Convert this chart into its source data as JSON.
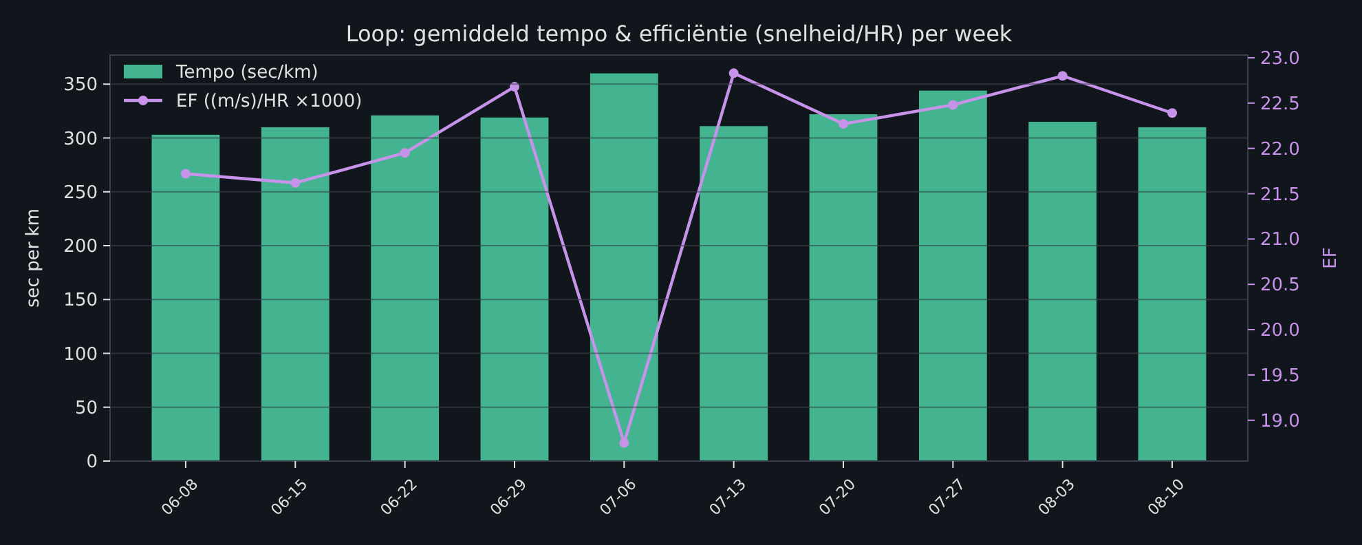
{
  "chart_data": {
    "type": "bar",
    "title": "Loop: gemiddeld tempo & efficiëntie (snelheid/HR) per week",
    "ylabel": "sec per km",
    "y2label": "EF",
    "categories": [
      "06-08",
      "06-15",
      "06-22",
      "06-29",
      "07-06",
      "07-13",
      "07-20",
      "07-27",
      "08-03",
      "08-10"
    ],
    "series": [
      {
        "name": "Tempo (sec/km)",
        "color": "#43b48f",
        "values": [
          303,
          310,
          321,
          319,
          360,
          311,
          322,
          344,
          315,
          310
        ]
      },
      {
        "name": "EF ((m/s)/HR ×1000)",
        "type": "line",
        "axis": "y2",
        "color": "#c792ea",
        "marker": "circle",
        "values": [
          21.72,
          21.62,
          21.95,
          22.68,
          18.75,
          22.83,
          22.27,
          22.48,
          22.8,
          22.39
        ]
      }
    ],
    "ylim": [
      0,
      377
    ],
    "yticks": [
      0,
      50,
      100,
      150,
      200,
      250,
      300,
      350
    ],
    "y2lim": [
      18.55,
      23.03
    ],
    "y2ticks": [
      {
        "value": 19,
        "label": "19.0"
      },
      {
        "value": 19.5,
        "label": "19.5"
      },
      {
        "value": 20,
        "label": "20.0"
      },
      {
        "value": 20.5,
        "label": "20.5"
      },
      {
        "value": 21,
        "label": "21.0"
      },
      {
        "value": 21.5,
        "label": "21.5"
      },
      {
        "value": 22,
        "label": "22.0"
      },
      {
        "value": 22.5,
        "label": "22.5"
      },
      {
        "value": 23,
        "label": "23.0"
      }
    ],
    "grid": "y",
    "legend": "top left"
  }
}
